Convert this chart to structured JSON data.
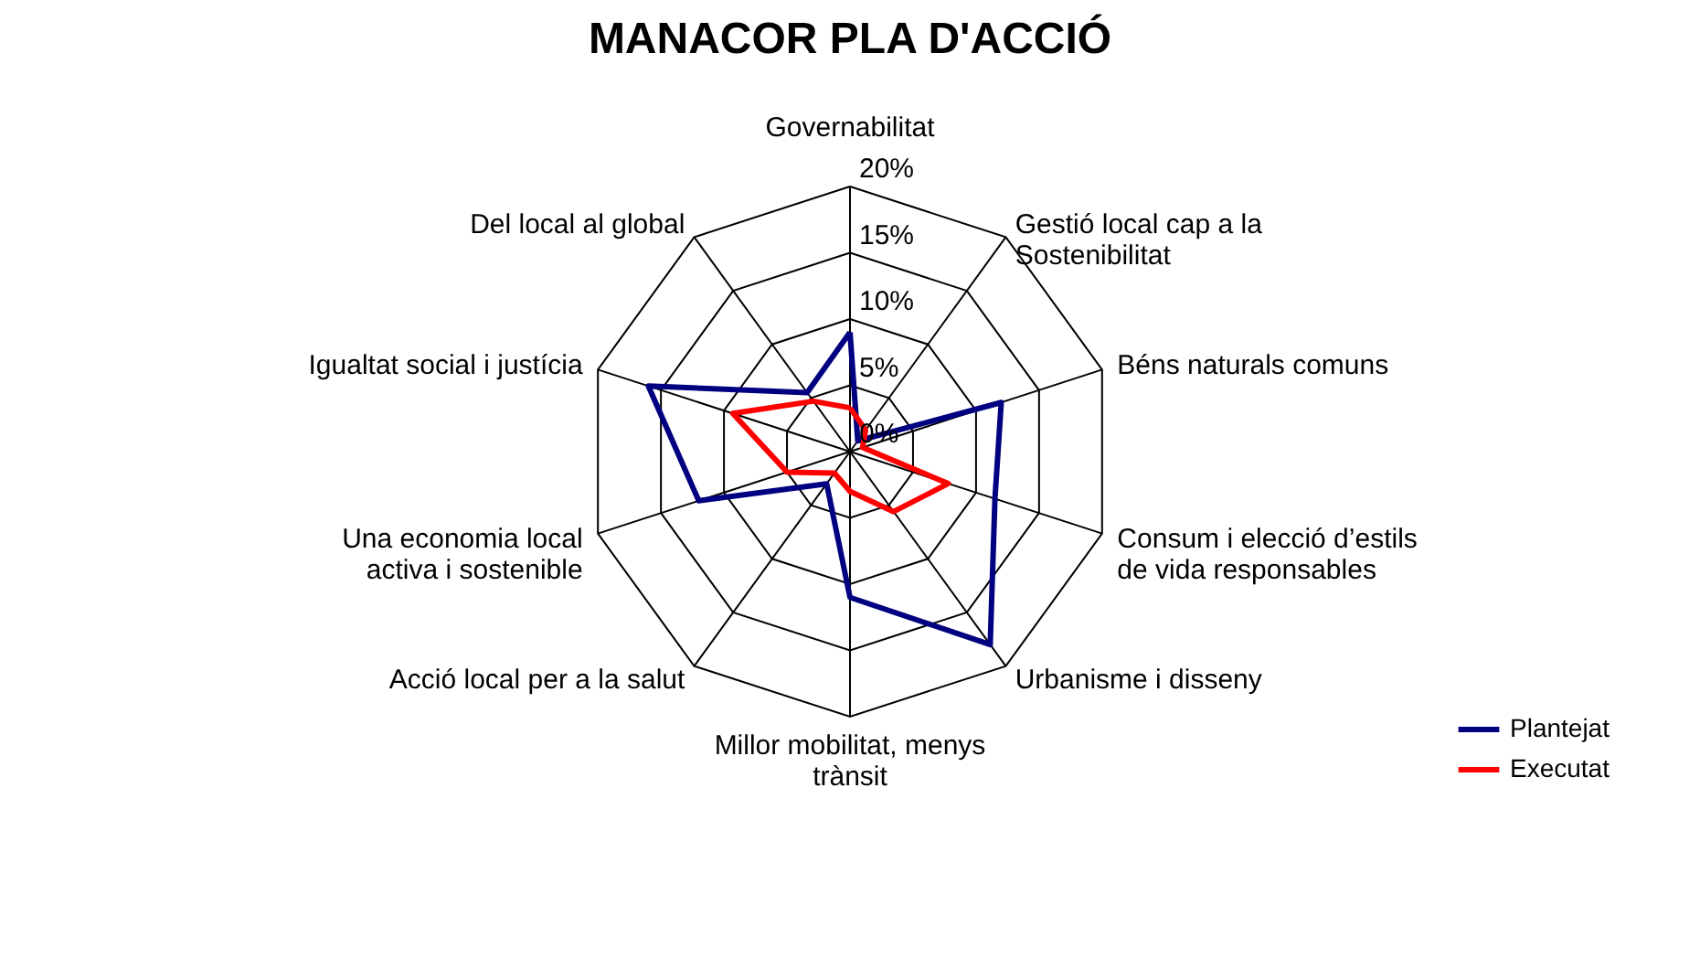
{
  "chart_data": {
    "type": "radar",
    "title": "MANACOR PLA D'ACCIÓ",
    "categories": [
      "Governabilitat",
      "Gestió local cap a la\nSostenibilitat",
      "Béns naturals comuns",
      "Consum i elecció d’estils\nde vida responsables",
      "Urbanisme i disseny",
      "Millor mobilitat, menys\ntrànsit",
      "Acció local per a la salut",
      "Una economia local\nactiva i sostenible",
      "Igualtat social i justícia",
      "Del local al global"
    ],
    "series": [
      {
        "name": "Plantejat",
        "color": "#000080",
        "values": [
          9,
          1,
          12,
          11.5,
          18,
          11,
          3,
          12,
          16,
          5.5
        ]
      },
      {
        "name": "Executat",
        "color": "#ff0000",
        "values": [
          3.3,
          2,
          1,
          7.8,
          5.6,
          3,
          2,
          5,
          9.3,
          4.7
        ]
      }
    ],
    "ylim": [
      0,
      20
    ],
    "yticks": [
      {
        "value": 0,
        "label": "0%"
      },
      {
        "value": 5,
        "label": "5%"
      },
      {
        "value": 10,
        "label": "10%"
      },
      {
        "value": 15,
        "label": "15%"
      },
      {
        "value": 20,
        "label": "20%"
      }
    ],
    "grid": true,
    "legend": "bottom right"
  }
}
